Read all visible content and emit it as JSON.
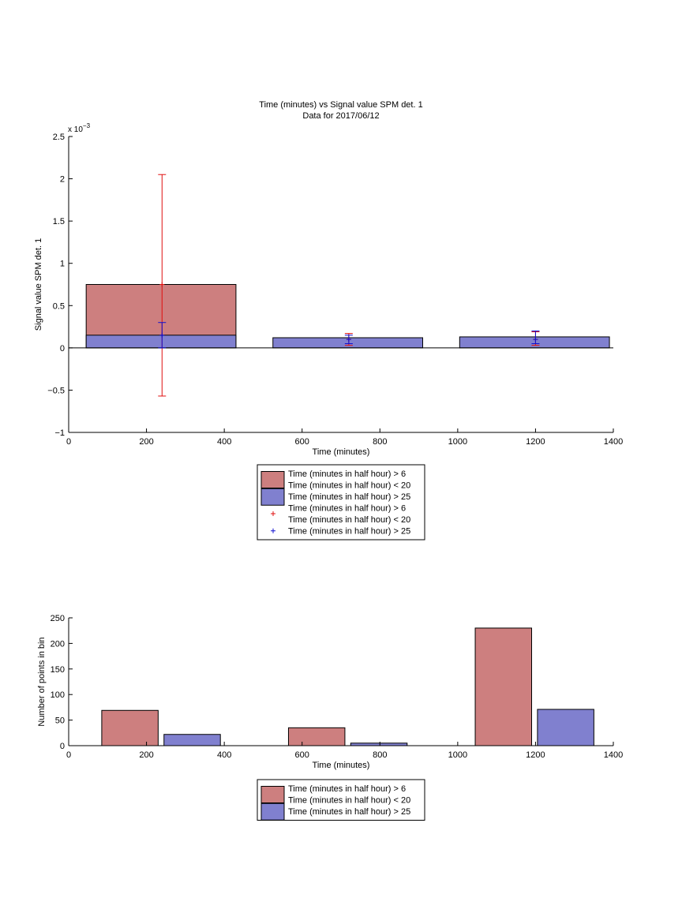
{
  "chart_data": [
    {
      "type": "bar",
      "title": "Time (minutes) vs Signal value SPM det. 1",
      "subtitle": "Data for 2017/06/12",
      "xlabel": "Time (minutes)",
      "ylabel": "Signal value SPM det. 1",
      "y_exponent": "x 10",
      "y_exponent_power": "−3",
      "xlim": [
        0,
        1400
      ],
      "ylim": [
        -1,
        2.5
      ],
      "x_ticks": [
        0,
        200,
        400,
        600,
        800,
        1000,
        1200,
        1400
      ],
      "y_ticks": [
        -1,
        -0.5,
        0,
        0.5,
        1,
        1.5,
        2,
        2.5
      ],
      "x_tick_labels": [
        "0",
        "200",
        "400",
        "600",
        "800",
        "1000",
        "1200",
        "1400"
      ],
      "y_tick_labels": [
        "−1",
        "−0.5",
        "0",
        "0.5",
        "1",
        "1.5",
        "2",
        "2.5"
      ],
      "grid": false,
      "bars": [
        {
          "x0": 45,
          "x1": 430,
          "value": 0.75,
          "color": "#cd7f7f"
        },
        {
          "x0": 45,
          "x1": 430,
          "value": 0.15,
          "color": "#8080cf"
        },
        {
          "x0": 525,
          "x1": 910,
          "value": 0.12,
          "color": "#8080cf"
        },
        {
          "x0": 1005,
          "x1": 1390,
          "value": 0.13,
          "color": "#8080cf"
        }
      ],
      "error_bars": [
        {
          "x": 240,
          "y": 0.75,
          "low": -0.57,
          "high": 2.05,
          "color": "#e01010"
        },
        {
          "x": 240,
          "y": 0.15,
          "low": 0.0,
          "high": 0.3,
          "color": "#1010d0"
        },
        {
          "x": 720,
          "y": 0.1,
          "low": 0.03,
          "high": 0.17,
          "color": "#e01010"
        },
        {
          "x": 720,
          "y": 0.1,
          "low": 0.05,
          "high": 0.15,
          "color": "#1010d0"
        },
        {
          "x": 1200,
          "y": 0.1,
          "low": 0.03,
          "high": 0.19,
          "color": "#e01010"
        },
        {
          "x": 1200,
          "y": 0.1,
          "low": 0.05,
          "high": 0.2,
          "color": "#1010d0"
        }
      ],
      "legend": {
        "position": "below",
        "entries": [
          {
            "kind": "patch",
            "color": "#cd7f7f",
            "lines": [
              "Time (minutes in half hour) > 6",
              "Time (minutes in half hour) < 20"
            ]
          },
          {
            "kind": "patch",
            "color": "#8080cf",
            "lines": [
              "Time (minutes in half hour) > 25"
            ]
          },
          {
            "kind": "marker",
            "color": "#e01010",
            "lines": [
              "Time (minutes in half hour) > 6",
              "Time (minutes in half hour) < 20"
            ]
          },
          {
            "kind": "marker",
            "color": "#1010d0",
            "lines": [
              "Time (minutes in half hour) > 25"
            ]
          }
        ]
      }
    },
    {
      "type": "bar",
      "xlabel": "Time (minutes)",
      "ylabel": "Number of points in bin",
      "xlim": [
        0,
        1400
      ],
      "ylim": [
        0,
        250
      ],
      "x_ticks": [
        0,
        200,
        400,
        600,
        800,
        1000,
        1200,
        1400
      ],
      "y_ticks": [
        0,
        50,
        100,
        150,
        200,
        250
      ],
      "x_tick_labels": [
        "0",
        "200",
        "400",
        "600",
        "800",
        "1000",
        "1200",
        "1400"
      ],
      "y_tick_labels": [
        "0",
        "50",
        "100",
        "150",
        "200",
        "250"
      ],
      "grid": false,
      "bars": [
        {
          "x0": 85,
          "x1": 230,
          "value": 69,
          "color": "#cd7f7f"
        },
        {
          "x0": 245,
          "x1": 390,
          "value": 22,
          "color": "#8080cf"
        },
        {
          "x0": 565,
          "x1": 710,
          "value": 35,
          "color": "#cd7f7f"
        },
        {
          "x0": 725,
          "x1": 870,
          "value": 5,
          "color": "#8080cf"
        },
        {
          "x0": 1045,
          "x1": 1190,
          "value": 230,
          "color": "#cd7f7f"
        },
        {
          "x0": 1205,
          "x1": 1350,
          "value": 71,
          "color": "#8080cf"
        }
      ],
      "legend": {
        "position": "below",
        "entries": [
          {
            "kind": "patch",
            "color": "#cd7f7f",
            "lines": [
              "Time (minutes in half hour) > 6",
              "Time (minutes in half hour) < 20"
            ]
          },
          {
            "kind": "patch",
            "color": "#8080cf",
            "lines": [
              "Time (minutes in half hour) > 25"
            ]
          }
        ]
      }
    }
  ]
}
